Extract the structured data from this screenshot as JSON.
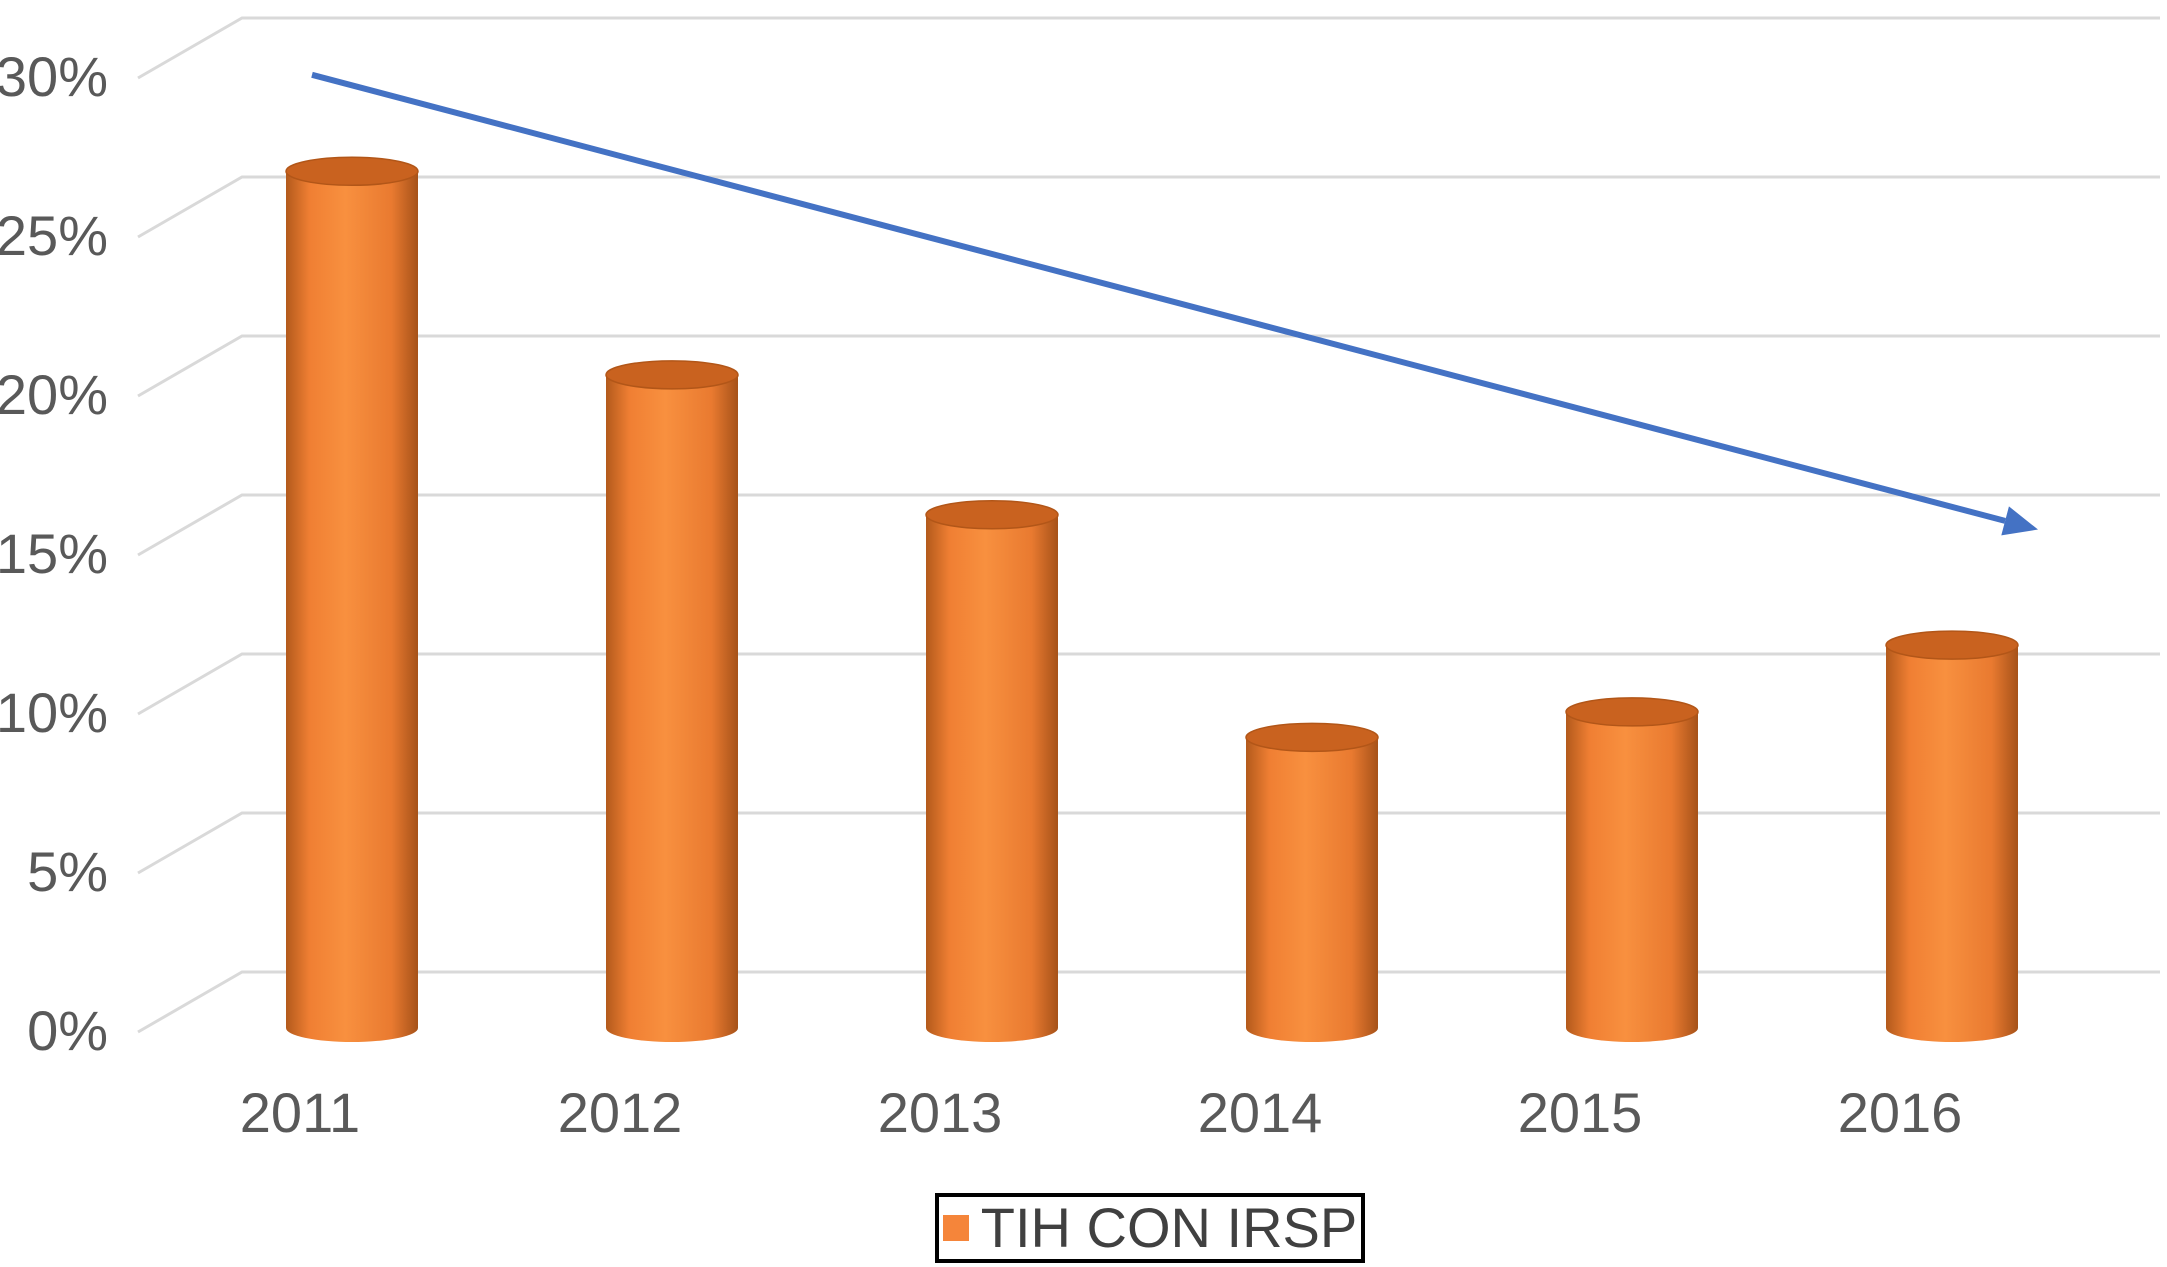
{
  "chart_data": {
    "type": "bar",
    "style": "3d-cylinder",
    "categories": [
      "2011",
      "2012",
      "2013",
      "2014",
      "2015",
      "2016"
    ],
    "series": [
      {
        "name": "TIH CON IRSP",
        "values": [
          26.5,
          20.1,
          15.7,
          8.7,
          9.5,
          11.6
        ]
      }
    ],
    "y_tick_labels": [
      "0%",
      "5%",
      "10%",
      "15%",
      "20%",
      "25%",
      "30%"
    ],
    "ylim": [
      0,
      30
    ],
    "grid": true,
    "legend_position": "bottom",
    "trend_arrow": {
      "from": {
        "category": "2011",
        "value": 30.1
      },
      "to": {
        "category": "2016",
        "value": 15.8
      }
    },
    "colors": {
      "bar": "#f5853a",
      "bar_top": "#c9621f",
      "grid": "#d9d9d9",
      "arrow": "#4472c4",
      "text": "#595959"
    }
  }
}
